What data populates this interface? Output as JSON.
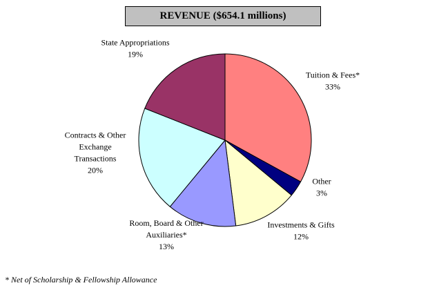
{
  "chart_data": {
    "type": "pie",
    "title": "REVENUE ($654.1 millions)",
    "start_angle_deg": 0,
    "direction": "clockwise",
    "slices": [
      {
        "label": [
          "Tuition & Fees*"
        ],
        "percent_label": "33%",
        "value": 33,
        "color": "#ff8080"
      },
      {
        "label": [
          "Other"
        ],
        "percent_label": "3%",
        "value": 3,
        "color": "#000080"
      },
      {
        "label": [
          "Investments & Gifts"
        ],
        "percent_label": "12%",
        "value": 12,
        "color": "#ffffcc"
      },
      {
        "label": [
          "Room, Board & Other",
          "Auxiliaries*"
        ],
        "percent_label": "13%",
        "value": 13,
        "color": "#9999ff"
      },
      {
        "label": [
          "Contracts & Other",
          "Exchange",
          "Transactions"
        ],
        "percent_label": "20%",
        "value": 20,
        "color": "#ccffff"
      },
      {
        "label": [
          "State Appropriations"
        ],
        "percent_label": "19%",
        "value": 19,
        "color": "#993366"
      }
    ]
  },
  "footnote": "* Net of Scholarship & Fellowship Allowance"
}
